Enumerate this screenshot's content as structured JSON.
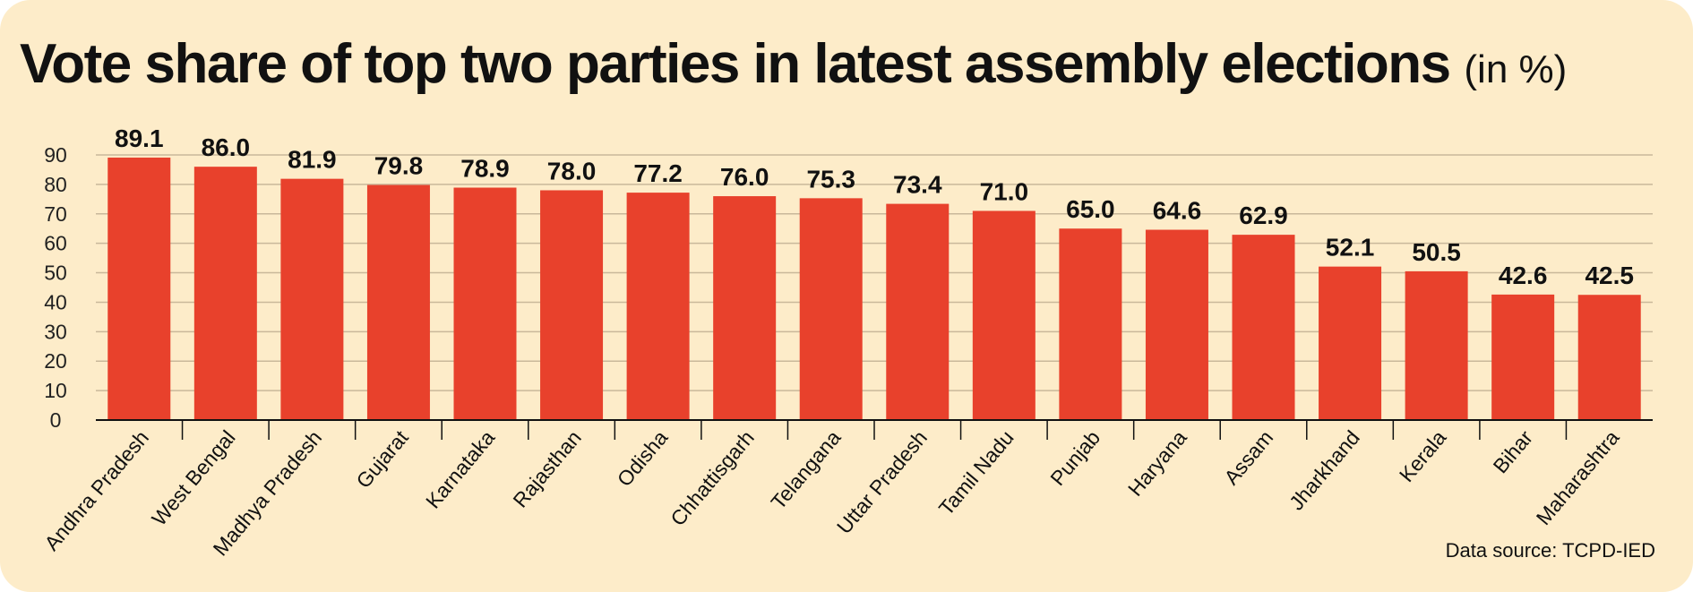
{
  "title": "Vote share of top two parties in latest assembly elections",
  "title_unit": "(in %)",
  "source": "Data source: TCPD-IED",
  "colors": {
    "background": "#fdecc9",
    "bar": "#e8412c",
    "grid": "#c9b89a"
  },
  "chart_data": {
    "type": "bar",
    "title": "Vote share of top two parties in latest assembly elections (in %)",
    "xlabel": "",
    "ylabel": "",
    "ylim": [
      0,
      90
    ],
    "yticks": [
      0,
      10,
      20,
      30,
      40,
      50,
      60,
      70,
      80,
      90
    ],
    "grid": true,
    "categories": [
      "Andhra Pradesh",
      "West Bengal",
      "Madhya Pradesh",
      "Gujarat",
      "Karnataka",
      "Rajasthan",
      "Odisha",
      "Chhattisgarh",
      "Telangana",
      "Uttar Pradesh",
      "Tamil Nadu",
      "Punjab",
      "Haryana",
      "Assam",
      "Jharkhand",
      "Kerala",
      "Bihar",
      "Maharashtra"
    ],
    "values": [
      89.1,
      86.0,
      81.9,
      79.8,
      78.9,
      78.0,
      77.2,
      76.0,
      75.3,
      73.4,
      71.0,
      65.0,
      64.6,
      62.9,
      52.1,
      50.5,
      42.6,
      42.5
    ],
    "value_labels": [
      "89.1",
      "86.0",
      "81.9",
      "79.8",
      "78.9",
      "78.0",
      "77.2",
      "76.0",
      "75.3",
      "73.4",
      "71.0",
      "65.0",
      "64.6",
      "62.9",
      "52.1",
      "50.5",
      "42.6",
      "42.5"
    ]
  }
}
